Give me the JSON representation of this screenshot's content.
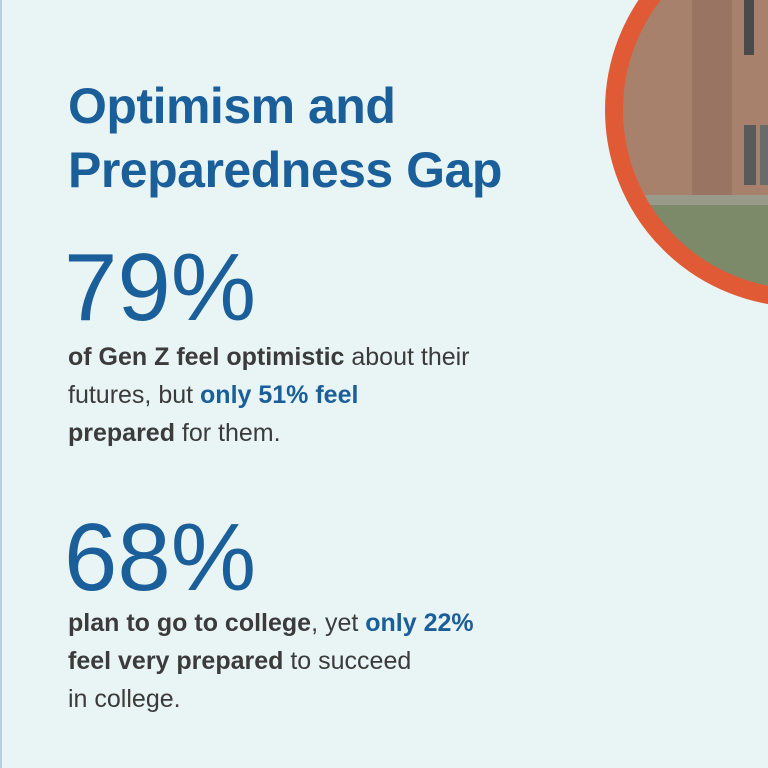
{
  "title": "Optimism and Preparedness Gap",
  "stats": [
    {
      "figure": "79%",
      "text": [
        "of Gen Z feel optimistic",
        " about their",
        "futures, but ",
        "only 51% feel",
        "prepared",
        " for them."
      ]
    },
    {
      "figure": "68%",
      "text": [
        "plan to go to college",
        ", yet ",
        "only 22%",
        "feel very prepared",
        " to succeed",
        "in college."
      ]
    }
  ]
}
